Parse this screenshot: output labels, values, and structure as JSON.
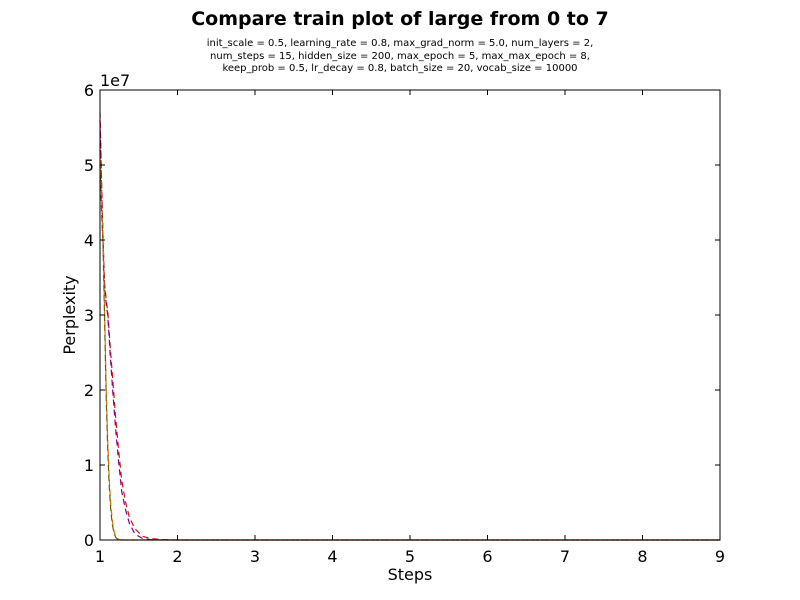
{
  "chart_data": {
    "type": "line",
    "title": "Compare train plot of large from 0 to 7",
    "subtitle_lines": [
      "init_scale = 0.5, learning_rate = 0.8, max_grad_norm = 5.0, num_layers = 2,",
      "num_steps = 15, hidden_size = 200, max_epoch = 5, max_max_epoch = 8,",
      "keep_prob = 0.5, lr_decay = 0.8, batch_size = 20, vocab_size = 10000"
    ],
    "xlabel": "Steps",
    "ylabel": "Perplexity",
    "y_offset_text": "1e7",
    "xlim": [
      1,
      9
    ],
    "ylim": [
      0,
      6
    ],
    "x_ticks": [
      "1",
      "2",
      "3",
      "4",
      "5",
      "6",
      "7",
      "8",
      "9"
    ],
    "y_ticks": [
      "0",
      "1",
      "2",
      "3",
      "4",
      "5",
      "6"
    ],
    "grid": false,
    "line_style": "dashed",
    "series": [
      {
        "color": "#d01010",
        "x": [
          1.0,
          1.02,
          1.04,
          1.06,
          1.08,
          1.1,
          1.13,
          1.16,
          1.2,
          1.24,
          1.28,
          1.33,
          1.38,
          1.45,
          1.55,
          1.65,
          1.8,
          2.0,
          9.0
        ],
        "y": [
          5.7,
          4.8,
          4.0,
          3.4,
          3.2,
          3.05,
          2.6,
          2.2,
          1.65,
          1.2,
          0.8,
          0.5,
          0.3,
          0.15,
          0.05,
          0.02,
          0.005,
          0.0,
          0.0
        ]
      },
      {
        "color": "#800080",
        "x": [
          1.0,
          1.02,
          1.04,
          1.06,
          1.08,
          1.1,
          1.13,
          1.16,
          1.2,
          1.24,
          1.28,
          1.33,
          1.38,
          1.45,
          1.55,
          1.65,
          1.8,
          2.0,
          9.0
        ],
        "y": [
          5.6,
          4.7,
          3.9,
          3.35,
          3.15,
          3.0,
          2.5,
          2.05,
          1.5,
          1.05,
          0.65,
          0.4,
          0.22,
          0.08,
          0.02,
          0.005,
          0.0,
          0.0,
          0.0
        ]
      },
      {
        "color": "#e07000",
        "x": [
          1.0,
          1.02,
          1.04,
          1.06,
          1.08,
          1.1,
          1.12,
          1.14,
          1.16,
          1.18,
          1.2,
          1.22,
          1.25,
          1.28,
          1.32,
          1.4,
          9.0
        ],
        "y": [
          5.2,
          4.5,
          4.0,
          3.0,
          2.0,
          1.3,
          0.8,
          0.45,
          0.25,
          0.12,
          0.05,
          0.02,
          0.005,
          0.0,
          0.0,
          0.0,
          0.0
        ]
      },
      {
        "color": "#606000",
        "x": [
          1.0,
          1.02,
          1.04,
          1.06,
          1.08,
          1.1,
          1.12,
          1.14,
          1.16,
          1.18,
          1.2,
          1.22,
          1.25,
          1.28,
          1.32,
          1.4,
          9.0
        ],
        "y": [
          5.0,
          4.4,
          3.9,
          2.9,
          1.9,
          1.2,
          0.7,
          0.38,
          0.2,
          0.1,
          0.04,
          0.015,
          0.003,
          0.0,
          0.0,
          0.0,
          0.0
        ]
      }
    ]
  }
}
